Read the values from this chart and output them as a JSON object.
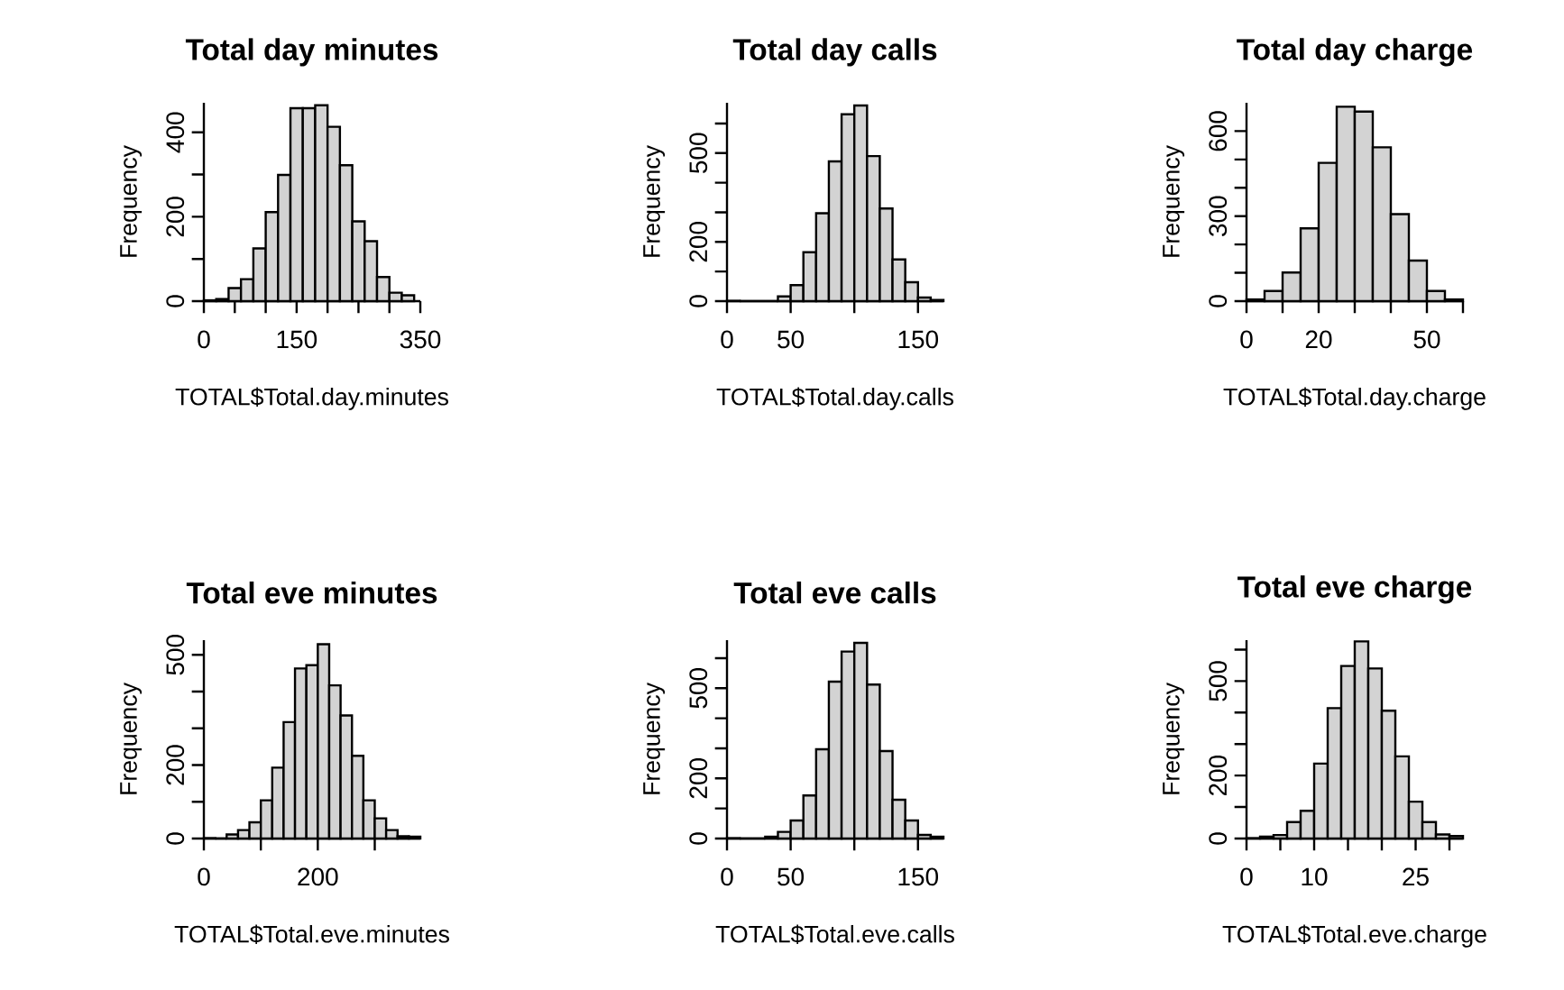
{
  "chart_data": [
    {
      "type": "histogram",
      "title": "Total day minutes",
      "xlabel": "TOTAL$Total.day.minutes",
      "ylabel": "Frequency",
      "color": "#d3d3d3",
      "bins": [
        0,
        20,
        40,
        60,
        80,
        100,
        120,
        140,
        160,
        180,
        200,
        220,
        240,
        260,
        280,
        300,
        320,
        340
      ],
      "values": [
        2,
        5,
        31,
        52,
        125,
        211,
        299,
        457,
        457,
        464,
        413,
        322,
        189,
        142,
        57,
        20,
        14
      ],
      "xlim": [
        0,
        350
      ],
      "ylim": [
        0,
        470
      ],
      "xticks": [
        0,
        {
          "value": 50,
          "label": null
        },
        {
          "value": 100,
          "label": null
        },
        150,
        {
          "value": 200,
          "label": null
        },
        {
          "value": 250,
          "label": null
        },
        {
          "value": 300,
          "label": null
        },
        350
      ],
      "yticks": [
        0,
        {
          "value": 100,
          "label": null
        },
        200,
        {
          "value": 300,
          "label": null
        },
        400
      ]
    },
    {
      "type": "histogram",
      "title": "Total day calls",
      "xlabel": "TOTAL$Total.day.calls",
      "ylabel": "Frequency",
      "color": "#d3d3d3",
      "bins": [
        0,
        10,
        20,
        30,
        40,
        50,
        60,
        70,
        80,
        90,
        100,
        110,
        120,
        130,
        140,
        150,
        160,
        170
      ],
      "values": [
        1,
        0,
        0,
        0,
        16,
        54,
        165,
        297,
        472,
        631,
        661,
        490,
        313,
        141,
        64,
        12,
        4
      ],
      "xlim": [
        0,
        170
      ],
      "ylim": [
        0,
        670
      ],
      "xticks": [
        0,
        50,
        {
          "value": 100,
          "label": null
        },
        150
      ],
      "yticks": [
        0,
        {
          "value": 100,
          "label": null
        },
        200,
        {
          "value": 300,
          "label": null
        },
        {
          "value": 400,
          "label": null
        },
        500,
        {
          "value": 600,
          "label": null
        }
      ]
    },
    {
      "type": "histogram",
      "title": "Total day charge",
      "xlabel": "TOTAL$Total.day.charge",
      "ylabel": "Frequency",
      "color": "#d3d3d3",
      "bins": [
        0,
        5,
        10,
        15,
        20,
        25,
        30,
        35,
        40,
        45,
        50,
        55,
        60
      ],
      "values": [
        6,
        36,
        101,
        257,
        488,
        686,
        669,
        543,
        307,
        143,
        36,
        6
      ],
      "xlim": [
        0,
        60
      ],
      "ylim": [
        0,
        700
      ],
      "xticks": [
        0,
        {
          "value": 10,
          "label": null
        },
        20,
        {
          "value": 30,
          "label": null
        },
        {
          "value": 40,
          "label": null
        },
        50,
        {
          "value": 60,
          "label": null
        }
      ],
      "yticks": [
        0,
        {
          "value": 100,
          "label": null
        },
        {
          "value": 200,
          "label": null
        },
        300,
        {
          "value": 400,
          "label": null
        },
        {
          "value": 500,
          "label": null
        },
        600
      ]
    },
    {
      "type": "histogram",
      "title": "Total eve minutes",
      "xlabel": "TOTAL$Total.eve.minutes",
      "ylabel": "Frequency",
      "color": "#d3d3d3",
      "bins": [
        0,
        20,
        40,
        60,
        80,
        100,
        120,
        140,
        160,
        180,
        200,
        220,
        240,
        260,
        280,
        300,
        320,
        340,
        360,
        380
      ],
      "values": [
        1,
        0,
        11,
        23,
        44,
        104,
        193,
        317,
        463,
        472,
        529,
        417,
        335,
        225,
        104,
        55,
        23,
        6,
        5
      ],
      "xlim": [
        0,
        380
      ],
      "ylim": [
        0,
        540
      ],
      "xticks": [
        0,
        {
          "value": 100,
          "label": null
        },
        200,
        {
          "value": 300,
          "label": null
        }
      ],
      "yticks": [
        0,
        {
          "value": 100,
          "label": null
        },
        200,
        {
          "value": 300,
          "label": null
        },
        {
          "value": 400,
          "label": null
        },
        500
      ]
    },
    {
      "type": "histogram",
      "title": "Total eve calls",
      "xlabel": "TOTAL$Total.eve.calls",
      "ylabel": "Frequency",
      "color": "#d3d3d3",
      "bins": [
        0,
        10,
        20,
        30,
        40,
        50,
        60,
        70,
        80,
        90,
        100,
        110,
        120,
        130,
        140,
        150,
        160,
        170
      ],
      "values": [
        1,
        0,
        0,
        6,
        22,
        60,
        143,
        297,
        522,
        622,
        651,
        512,
        291,
        129,
        60,
        12,
        6
      ],
      "xlim": [
        0,
        170
      ],
      "ylim": [
        0,
        660
      ],
      "xticks": [
        0,
        50,
        {
          "value": 100,
          "label": null
        },
        150
      ],
      "yticks": [
        0,
        {
          "value": 100,
          "label": null
        },
        200,
        {
          "value": 300,
          "label": null
        },
        {
          "value": 400,
          "label": null
        },
        500,
        {
          "value": 600,
          "label": null
        }
      ]
    },
    {
      "type": "histogram",
      "title": "Total eve charge",
      "xlabel": "TOTAL$Total.eve.charge",
      "ylabel": "Frequency",
      "color": "#d3d3d3",
      "bins": [
        0,
        2,
        4,
        6,
        8,
        10,
        12,
        14,
        16,
        18,
        20,
        22,
        24,
        26,
        28,
        30,
        32
      ],
      "values": [
        1,
        6,
        11,
        52,
        88,
        238,
        414,
        548,
        626,
        540,
        406,
        261,
        117,
        52,
        13,
        8
      ],
      "xlim": [
        0,
        32
      ],
      "ylim": [
        0,
        630
      ],
      "xticks": [
        0,
        {
          "value": 5,
          "label": null
        },
        10,
        {
          "value": 15,
          "label": null
        },
        {
          "value": 20,
          "label": null
        },
        25,
        {
          "value": 30,
          "label": null
        }
      ],
      "yticks": [
        0,
        {
          "value": 100,
          "label": null
        },
        200,
        {
          "value": 300,
          "label": null
        },
        {
          "value": 400,
          "label": null
        },
        500,
        {
          "value": 600,
          "label": null
        }
      ]
    }
  ]
}
